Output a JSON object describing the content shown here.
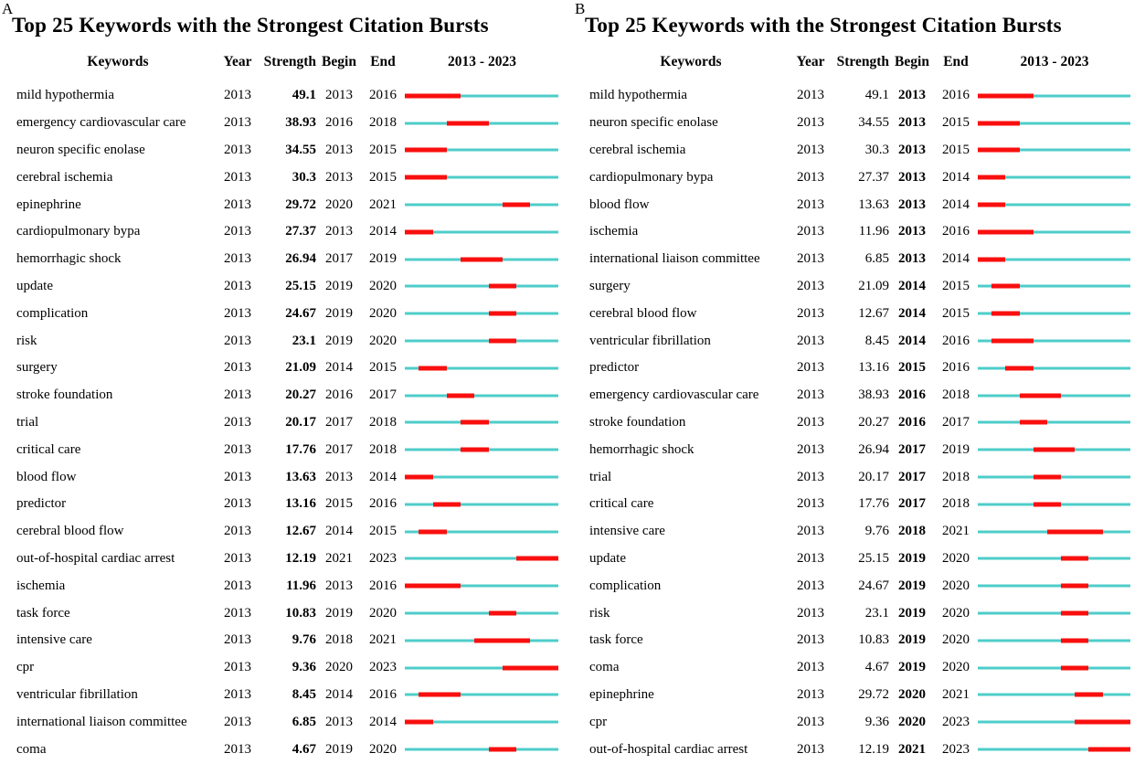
{
  "colors": {
    "burst_red": "#f80f0e",
    "baseline_cyan": "#4ecdc9",
    "text": "#000000"
  },
  "chart_data": [
    {
      "type": "table",
      "panel_label": "A",
      "title": "Top 25 Keywords with the Strongest Citation Bursts",
      "columns": {
        "keywords": "Keywords",
        "year": "Year",
        "strength": "Strength",
        "begin": "Begin",
        "end": "End",
        "timeline": "2013 - 2023"
      },
      "timeline_range": {
        "start": 2013,
        "end": 2023
      },
      "bold_field": "strength",
      "rows": [
        {
          "keyword": "mild hypothermia",
          "year": 2013,
          "strength": "49.1",
          "begin": 2013,
          "end": 2016
        },
        {
          "keyword": "emergency cardiovascular care",
          "year": 2013,
          "strength": "38.93",
          "begin": 2016,
          "end": 2018
        },
        {
          "keyword": "neuron specific enolase",
          "year": 2013,
          "strength": "34.55",
          "begin": 2013,
          "end": 2015
        },
        {
          "keyword": "cerebral ischemia",
          "year": 2013,
          "strength": "30.3",
          "begin": 2013,
          "end": 2015
        },
        {
          "keyword": "epinephrine",
          "year": 2013,
          "strength": "29.72",
          "begin": 2020,
          "end": 2021
        },
        {
          "keyword": "cardiopulmonary bypa",
          "year": 2013,
          "strength": "27.37",
          "begin": 2013,
          "end": 2014
        },
        {
          "keyword": "hemorrhagic shock",
          "year": 2013,
          "strength": "26.94",
          "begin": 2017,
          "end": 2019
        },
        {
          "keyword": "update",
          "year": 2013,
          "strength": "25.15",
          "begin": 2019,
          "end": 2020
        },
        {
          "keyword": "complication",
          "year": 2013,
          "strength": "24.67",
          "begin": 2019,
          "end": 2020
        },
        {
          "keyword": "risk",
          "year": 2013,
          "strength": "23.1",
          "begin": 2019,
          "end": 2020
        },
        {
          "keyword": "surgery",
          "year": 2013,
          "strength": "21.09",
          "begin": 2014,
          "end": 2015
        },
        {
          "keyword": "stroke foundation",
          "year": 2013,
          "strength": "20.27",
          "begin": 2016,
          "end": 2017
        },
        {
          "keyword": "trial",
          "year": 2013,
          "strength": "20.17",
          "begin": 2017,
          "end": 2018
        },
        {
          "keyword": "critical care",
          "year": 2013,
          "strength": "17.76",
          "begin": 2017,
          "end": 2018
        },
        {
          "keyword": "blood flow",
          "year": 2013,
          "strength": "13.63",
          "begin": 2013,
          "end": 2014
        },
        {
          "keyword": "predictor",
          "year": 2013,
          "strength": "13.16",
          "begin": 2015,
          "end": 2016
        },
        {
          "keyword": "cerebral blood flow",
          "year": 2013,
          "strength": "12.67",
          "begin": 2014,
          "end": 2015
        },
        {
          "keyword": "out-of-hospital cardiac arrest",
          "year": 2013,
          "strength": "12.19",
          "begin": 2021,
          "end": 2023
        },
        {
          "keyword": "ischemia",
          "year": 2013,
          "strength": "11.96",
          "begin": 2013,
          "end": 2016
        },
        {
          "keyword": "task force",
          "year": 2013,
          "strength": "10.83",
          "begin": 2019,
          "end": 2020
        },
        {
          "keyword": "intensive care",
          "year": 2013,
          "strength": "9.76",
          "begin": 2018,
          "end": 2021
        },
        {
          "keyword": "cpr",
          "year": 2013,
          "strength": "9.36",
          "begin": 2020,
          "end": 2023
        },
        {
          "keyword": "ventricular fibrillation",
          "year": 2013,
          "strength": "8.45",
          "begin": 2014,
          "end": 2016
        },
        {
          "keyword": "international liaison committee",
          "year": 2013,
          "strength": "6.85",
          "begin": 2013,
          "end": 2014
        },
        {
          "keyword": "coma",
          "year": 2013,
          "strength": "4.67",
          "begin": 2019,
          "end": 2020
        }
      ]
    },
    {
      "type": "table",
      "panel_label": "B",
      "title": "Top 25 Keywords with the Strongest Citation Bursts",
      "columns": {
        "keywords": "Keywords",
        "year": "Year",
        "strength": "Strength",
        "begin": "Begin",
        "end": "End",
        "timeline": "2013 - 2023"
      },
      "timeline_range": {
        "start": 2013,
        "end": 2023
      },
      "bold_field": "begin",
      "rows": [
        {
          "keyword": "mild hypothermia",
          "year": 2013,
          "strength": "49.1",
          "begin": 2013,
          "end": 2016
        },
        {
          "keyword": "neuron specific enolase",
          "year": 2013,
          "strength": "34.55",
          "begin": 2013,
          "end": 2015
        },
        {
          "keyword": "cerebral ischemia",
          "year": 2013,
          "strength": "30.3",
          "begin": 2013,
          "end": 2015
        },
        {
          "keyword": "cardiopulmonary bypa",
          "year": 2013,
          "strength": "27.37",
          "begin": 2013,
          "end": 2014
        },
        {
          "keyword": "blood flow",
          "year": 2013,
          "strength": "13.63",
          "begin": 2013,
          "end": 2014
        },
        {
          "keyword": "ischemia",
          "year": 2013,
          "strength": "11.96",
          "begin": 2013,
          "end": 2016
        },
        {
          "keyword": "international liaison committee",
          "year": 2013,
          "strength": "6.85",
          "begin": 2013,
          "end": 2014
        },
        {
          "keyword": "surgery",
          "year": 2013,
          "strength": "21.09",
          "begin": 2014,
          "end": 2015
        },
        {
          "keyword": "cerebral blood flow",
          "year": 2013,
          "strength": "12.67",
          "begin": 2014,
          "end": 2015
        },
        {
          "keyword": "ventricular fibrillation",
          "year": 2013,
          "strength": "8.45",
          "begin": 2014,
          "end": 2016
        },
        {
          "keyword": "predictor",
          "year": 2013,
          "strength": "13.16",
          "begin": 2015,
          "end": 2016
        },
        {
          "keyword": "emergency cardiovascular care",
          "year": 2013,
          "strength": "38.93",
          "begin": 2016,
          "end": 2018
        },
        {
          "keyword": "stroke foundation",
          "year": 2013,
          "strength": "20.27",
          "begin": 2016,
          "end": 2017
        },
        {
          "keyword": "hemorrhagic shock",
          "year": 2013,
          "strength": "26.94",
          "begin": 2017,
          "end": 2019
        },
        {
          "keyword": "trial",
          "year": 2013,
          "strength": "20.17",
          "begin": 2017,
          "end": 2018
        },
        {
          "keyword": "critical care",
          "year": 2013,
          "strength": "17.76",
          "begin": 2017,
          "end": 2018
        },
        {
          "keyword": "intensive care",
          "year": 2013,
          "strength": "9.76",
          "begin": 2018,
          "end": 2021
        },
        {
          "keyword": "update",
          "year": 2013,
          "strength": "25.15",
          "begin": 2019,
          "end": 2020
        },
        {
          "keyword": "complication",
          "year": 2013,
          "strength": "24.67",
          "begin": 2019,
          "end": 2020
        },
        {
          "keyword": "risk",
          "year": 2013,
          "strength": "23.1",
          "begin": 2019,
          "end": 2020
        },
        {
          "keyword": "task force",
          "year": 2013,
          "strength": "10.83",
          "begin": 2019,
          "end": 2020
        },
        {
          "keyword": "coma",
          "year": 2013,
          "strength": "4.67",
          "begin": 2019,
          "end": 2020
        },
        {
          "keyword": "epinephrine",
          "year": 2013,
          "strength": "29.72",
          "begin": 2020,
          "end": 2021
        },
        {
          "keyword": "cpr",
          "year": 2013,
          "strength": "9.36",
          "begin": 2020,
          "end": 2023
        },
        {
          "keyword": "out-of-hospital cardiac arrest",
          "year": 2013,
          "strength": "12.19",
          "begin": 2021,
          "end": 2023
        }
      ]
    }
  ]
}
